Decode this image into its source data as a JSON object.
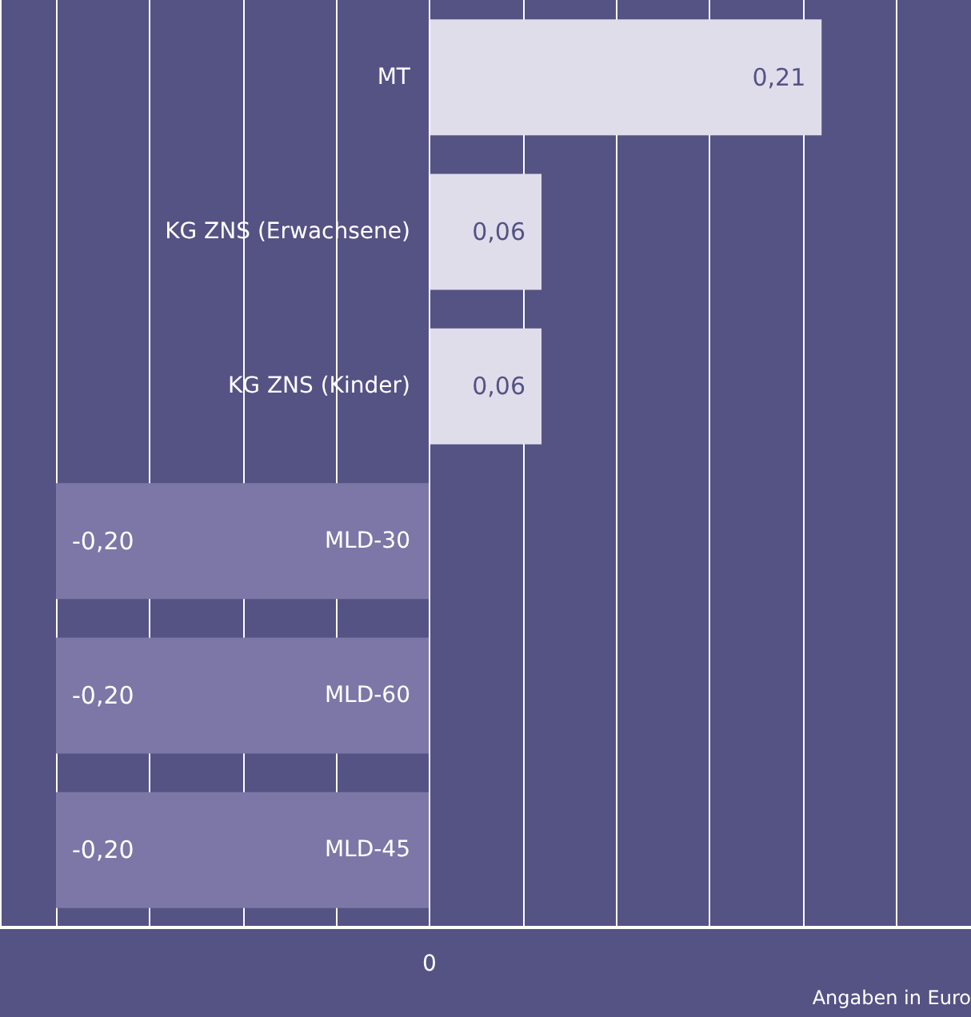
{
  "chart_data": {
    "type": "bar",
    "orientation": "horizontal",
    "xlabel": "Angaben in Euro",
    "categories": [
      "MT",
      "KG ZNS (Erwachsene)",
      "KG ZNS (Kinder)",
      "MLD-30",
      "MLD-60",
      "MLD-45"
    ],
    "values": [
      0.21,
      0.06,
      0.06,
      -0.2,
      -0.2,
      -0.2
    ],
    "colors": [
      "#e0ddeb",
      "#e0ddeb",
      "#e0ddeb",
      "#7c77a6",
      "#7c77a6",
      "#7c77a6"
    ],
    "value_labels": [
      "0,21",
      "0,06",
      "0,06",
      "-0,20",
      "-0,20",
      "-0,20"
    ],
    "xlim": [
      -0.23,
      0.29
    ],
    "annotations": [
      "0"
    ],
    "grid": "x"
  }
}
